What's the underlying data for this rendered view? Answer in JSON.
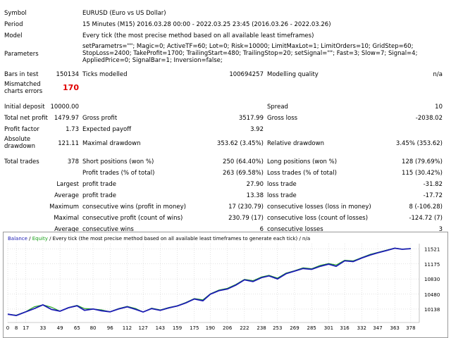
{
  "report": {
    "symbol": {
      "label": "Symbol",
      "value": "EURUSD (Euro vs US Dollar)"
    },
    "period": {
      "label": "Period",
      "value": "15 Minutes (M15) 2016.03.28 00:00 - 2022.03.25 23:45 (2016.03.26 - 2022.03.26)"
    },
    "model": {
      "label": "Model",
      "value": "Every tick (the most precise method based on all available least timeframes)"
    },
    "parameters": {
      "label": "Parameters",
      "value": "setParametrs=\"\"; Magic=0; ActiveTF=60; Lot=0; Risk=10000; LimitMaxLot=1; LimitOrders=10; GridStep=60; StopLoss=2400; TakeProfit=1700; TrailingStart=480; TrailingStop=20; setSignal=\"\"; Fast=3; Slow=7; Signal=4; AppliedPrice=0; SignalBar=1; Inversion=false;"
    },
    "bars_in_test": {
      "label": "Bars in test",
      "value": "150134"
    },
    "ticks_modelled": {
      "label": "Ticks modelled",
      "value": "100694257"
    },
    "modelling_quality": {
      "label": "Modelling quality",
      "value": "n/a"
    },
    "mismatched": {
      "label": "Mismatched charts errors",
      "value": "170"
    },
    "initial_deposit": {
      "label": "Initial deposit",
      "value": "10000.00"
    },
    "spread": {
      "label": "Spread",
      "value": "10"
    },
    "total_net_profit": {
      "label": "Total net profit",
      "value": "1479.97"
    },
    "gross_profit": {
      "label": "Gross profit",
      "value": "3517.99"
    },
    "gross_loss": {
      "label": "Gross loss",
      "value": "-2038.02"
    },
    "profit_factor": {
      "label": "Profit factor",
      "value": "1.73"
    },
    "expected_payoff": {
      "label": "Expected payoff",
      "value": "3.92"
    },
    "absolute_drawdown": {
      "label": "Absolute drawdown",
      "value": "121.11"
    },
    "maximal_drawdown": {
      "label": "Maximal drawdown",
      "value": "353.62 (3.45%)"
    },
    "relative_drawdown": {
      "label": "Relative drawdown",
      "value": "3.45% (353.62)"
    },
    "total_trades": {
      "label": "Total trades",
      "value": "378"
    },
    "short_positions": {
      "label": "Short positions (won %)",
      "value": "250 (64.40%)"
    },
    "long_positions": {
      "label": "Long positions (won %)",
      "value": "128 (79.69%)"
    },
    "profit_trades": {
      "label": "Profit trades (% of total)",
      "value": "263 (69.58%)"
    },
    "loss_trades": {
      "label": "Loss trades (% of total)",
      "value": "115 (30.42%)"
    },
    "largest": {
      "prefix": "Largest",
      "profit_label": "profit trade",
      "profit_value": "27.90",
      "loss_label": "loss trade",
      "loss_value": "-31.82"
    },
    "average": {
      "prefix": "Average",
      "profit_label": "profit trade",
      "profit_value": "13.38",
      "loss_label": "loss trade",
      "loss_value": "-17.72"
    },
    "maximum": {
      "prefix": "Maximum",
      "wins_label": "consecutive wins (profit in money)",
      "wins_value": "17 (230.79)",
      "losses_label": "consecutive losses (loss in money)",
      "losses_value": "8 (-106.28)"
    },
    "maximal": {
      "prefix": "Maximal",
      "profit_label": "consecutive profit (count of wins)",
      "profit_value": "230.79 (17)",
      "loss_label": "consecutive loss (count of losses)",
      "loss_value": "-124.72 (7)"
    },
    "average_consecutive": {
      "prefix": "Average",
      "wins_label": "consecutive wins",
      "wins_value": "6",
      "losses_label": "consecutive losses",
      "losses_value": "3"
    }
  },
  "chart_legend": {
    "balance": "Balance",
    "sep": " / ",
    "equity": "Equity",
    "rest": " / Every tick (the most precise method based on all available least timeframes to generate each tick) / n/a"
  },
  "colors": {
    "balance": "#1c1cb4",
    "equity": "#18a018",
    "error": "#e00000"
  },
  "chart_data": {
    "type": "line",
    "title": "",
    "xlabel": "",
    "ylabel": "",
    "x_ticks": [
      0,
      8,
      17,
      33,
      49,
      65,
      80,
      96,
      112,
      127,
      143,
      159,
      175,
      190,
      206,
      222,
      238,
      253,
      269,
      285,
      301,
      316,
      332,
      347,
      363,
      378
    ],
    "y_ticks": [
      10138,
      10480,
      10830,
      11175,
      11521
    ],
    "xlim": [
      0,
      386
    ],
    "ylim": [
      9830,
      11640
    ],
    "grid": true,
    "series": [
      {
        "name": "Balance",
        "x": [
          0,
          8,
          17,
          25,
          33,
          41,
          49,
          57,
          65,
          72,
          80,
          88,
          96,
          104,
          112,
          120,
          127,
          135,
          143,
          151,
          159,
          167,
          175,
          183,
          190,
          198,
          206,
          214,
          222,
          230,
          238,
          245,
          253,
          261,
          269,
          277,
          285,
          293,
          301,
          308,
          316,
          324,
          332,
          340,
          347,
          355,
          363,
          370,
          378
        ],
        "y": [
          10020,
          9990,
          10075,
          10150,
          10235,
          10130,
          10090,
          10170,
          10215,
          10110,
          10140,
          10100,
          10075,
          10140,
          10190,
          10130,
          10070,
          10150,
          10110,
          10165,
          10210,
          10280,
          10370,
          10330,
          10480,
          10560,
          10600,
          10690,
          10810,
          10770,
          10860,
          10900,
          10830,
          10950,
          11010,
          11070,
          11050,
          11120,
          11170,
          11120,
          11245,
          11230,
          11310,
          11380,
          11430,
          11480,
          11535,
          11510,
          11525
        ]
      },
      {
        "name": "Equity",
        "x": [
          0,
          8,
          17,
          25,
          33,
          41,
          49,
          57,
          65,
          72,
          80,
          88,
          96,
          104,
          112,
          120,
          127,
          135,
          143,
          151,
          159,
          167,
          175,
          183,
          190,
          198,
          206,
          214,
          222,
          230,
          238,
          245,
          253,
          261,
          269,
          277,
          285,
          293,
          301,
          308,
          316,
          324,
          332,
          340,
          347,
          355,
          363,
          370,
          378
        ],
        "y": [
          10020,
          10000,
          10080,
          10190,
          10235,
          10180,
          10090,
          10175,
          10225,
          10150,
          10140,
          10120,
          10075,
          10150,
          10200,
          10150,
          10070,
          10160,
          10120,
          10175,
          10215,
          10290,
          10380,
          10350,
          10490,
          10575,
          10615,
          10705,
          10820,
          10790,
          10875,
          10915,
          10850,
          10965,
          11020,
          11085,
          11065,
          11140,
          11185,
          11150,
          11260,
          11245,
          11320,
          11395,
          11440,
          11490,
          11540,
          11515,
          11530
        ]
      }
    ]
  }
}
